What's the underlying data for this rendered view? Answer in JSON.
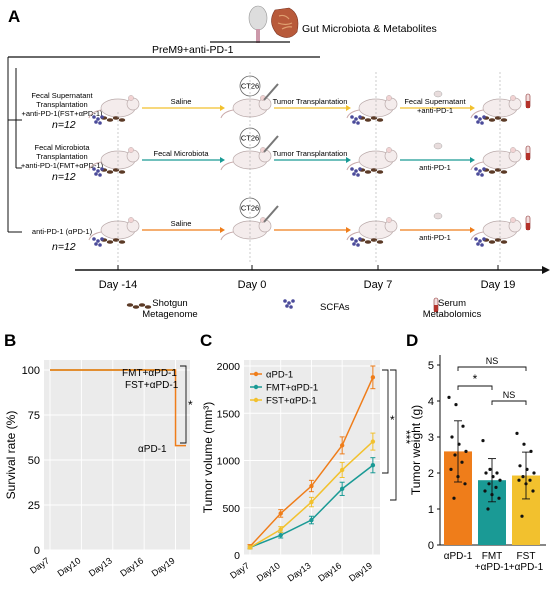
{
  "panels": {
    "A": {
      "letter": "A",
      "top_label": "Gut Microbiota & Metabolites",
      "treatment_label": "PreM9+anti-PD-1",
      "groups": [
        {
          "name_lines": [
            "Fecal Supernatant",
            "Transplantation",
            "+anti-PD-1(FST+αPD-1)"
          ],
          "n": "n=12",
          "step1": "Saline",
          "step2": "Tumor Transplantation",
          "step3_lines": [
            "Fecal Supernatant",
            "+anti-PD-1"
          ],
          "color": "#f2c12e"
        },
        {
          "name_lines": [
            "Fecal Microbiota",
            "Transplantation",
            "+anti-PD-1(FMT+αPD-1)"
          ],
          "n": "n=12",
          "step1": "Fecal Microbiota",
          "step2": "Tumor Transplantation",
          "step3_lines": [
            "anti-PD-1"
          ],
          "color": "#1a9a95"
        },
        {
          "name_lines": [
            "anti-PD-1 (αPD-1)"
          ],
          "n": "n=12",
          "step1": "Saline",
          "step2": "",
          "step3_lines": [
            "anti-PD-1"
          ],
          "color": "#ef7d1a"
        }
      ],
      "ct26_label": "CT26",
      "timeline": [
        "Day -14",
        "Day 0",
        "Day 7",
        "Day 19"
      ],
      "legend": [
        {
          "lines": [
            "Shotgun",
            "Metagenome"
          ],
          "icon": "stool-icon"
        },
        {
          "lines": [
            "SCFAs"
          ],
          "icon": "molecule-icon"
        },
        {
          "lines": [
            "Serum",
            "Metabolomics"
          ],
          "icon": "serum-tube-icon"
        }
      ]
    },
    "B": {
      "letter": "B",
      "chart_data": {
        "type": "line",
        "ylabel": "Survival rate (%)",
        "xlabel": "",
        "x_ticks": [
          "Day7",
          "Day10",
          "Day13",
          "Day16",
          "Day19"
        ],
        "ylim": [
          0,
          100
        ],
        "y_ticks": [
          0,
          25,
          50,
          75,
          100
        ],
        "grid": true,
        "series": [
          {
            "name": "FMT+αPD-1",
            "x": [
              7,
              19
            ],
            "y": [
              100,
              100
            ],
            "color": "#1a9a95"
          },
          {
            "name": "FST+αPD-1",
            "x": [
              7,
              19
            ],
            "y": [
              100,
              100
            ],
            "color": "#f2c12e"
          },
          {
            "name": "αPD-1",
            "x": [
              7,
              19,
              19,
              20
            ],
            "y": [
              100,
              100,
              58,
              58
            ],
            "color": "#ef7d1a"
          }
        ],
        "labels": [
          "FMT+αPD-1",
          "FST+αPD-1",
          "αPD-1"
        ],
        "significance": "*"
      }
    },
    "C": {
      "letter": "C",
      "chart_data": {
        "type": "line",
        "ylabel": "Tumor volume (mm³)",
        "x_ticks": [
          "Day7",
          "Day10",
          "Day13",
          "Day16",
          "Day19"
        ],
        "x": [
          7,
          10,
          13,
          16,
          19
        ],
        "ylim": [
          0,
          2000
        ],
        "y_ticks": [
          0,
          500,
          1000,
          1500,
          2000
        ],
        "grid": true,
        "legend": "top-left",
        "series": [
          {
            "name": "αPD-1",
            "values": [
              90,
              440,
              730,
              1160,
              1880
            ],
            "err": [
              20,
              40,
              60,
              90,
              120
            ],
            "color": "#ef7d1a"
          },
          {
            "name": "FMT+αPD-1",
            "values": [
              80,
              210,
              370,
              700,
              950
            ],
            "err": [
              15,
              30,
              40,
              70,
              80
            ],
            "color": "#1a9a95"
          },
          {
            "name": "FST+αPD-1",
            "values": [
              80,
              270,
              560,
              900,
              1200
            ],
            "err": [
              15,
              30,
              50,
              80,
              90
            ],
            "color": "#f2c12e"
          }
        ],
        "significance": [
          "*",
          "***"
        ]
      }
    },
    "D": {
      "letter": "D",
      "chart_data": {
        "type": "bar",
        "ylabel": "Tumor weight (g)",
        "categories": [
          "αPD-1",
          "FMT +αPD-1",
          "FST +αPD-1"
        ],
        "category_lines": [
          [
            "αPD-1"
          ],
          [
            "FMT",
            "+αPD-1"
          ],
          [
            "FST",
            "+αPD-1"
          ]
        ],
        "values": [
          2.6,
          1.8,
          1.93
        ],
        "err": [
          0.85,
          0.6,
          0.65
        ],
        "ylim": [
          0,
          5
        ],
        "y_ticks": [
          0,
          1,
          2,
          3,
          4,
          5
        ],
        "colors": [
          "#ef7d1a",
          "#1a9a95",
          "#f2c12e"
        ],
        "points": [
          [
            4.1,
            3.9,
            3.3,
            3.0,
            2.8,
            2.6,
            2.5,
            2.3,
            2.1,
            1.9,
            1.7,
            1.3
          ],
          [
            2.9,
            2.1,
            2.0,
            2.0,
            1.9,
            1.8,
            1.7,
            1.6,
            1.5,
            1.4,
            1.3,
            1.0
          ],
          [
            3.1,
            2.8,
            2.6,
            2.2,
            2.1,
            2.0,
            1.9,
            1.8,
            1.8,
            1.7,
            1.5,
            0.8
          ]
        ],
        "comparisons": [
          {
            "a": 0,
            "b": 2,
            "label": "NS"
          },
          {
            "a": 0,
            "b": 1,
            "label": "*"
          },
          {
            "a": 1,
            "b": 2,
            "label": "NS"
          }
        ]
      }
    }
  }
}
